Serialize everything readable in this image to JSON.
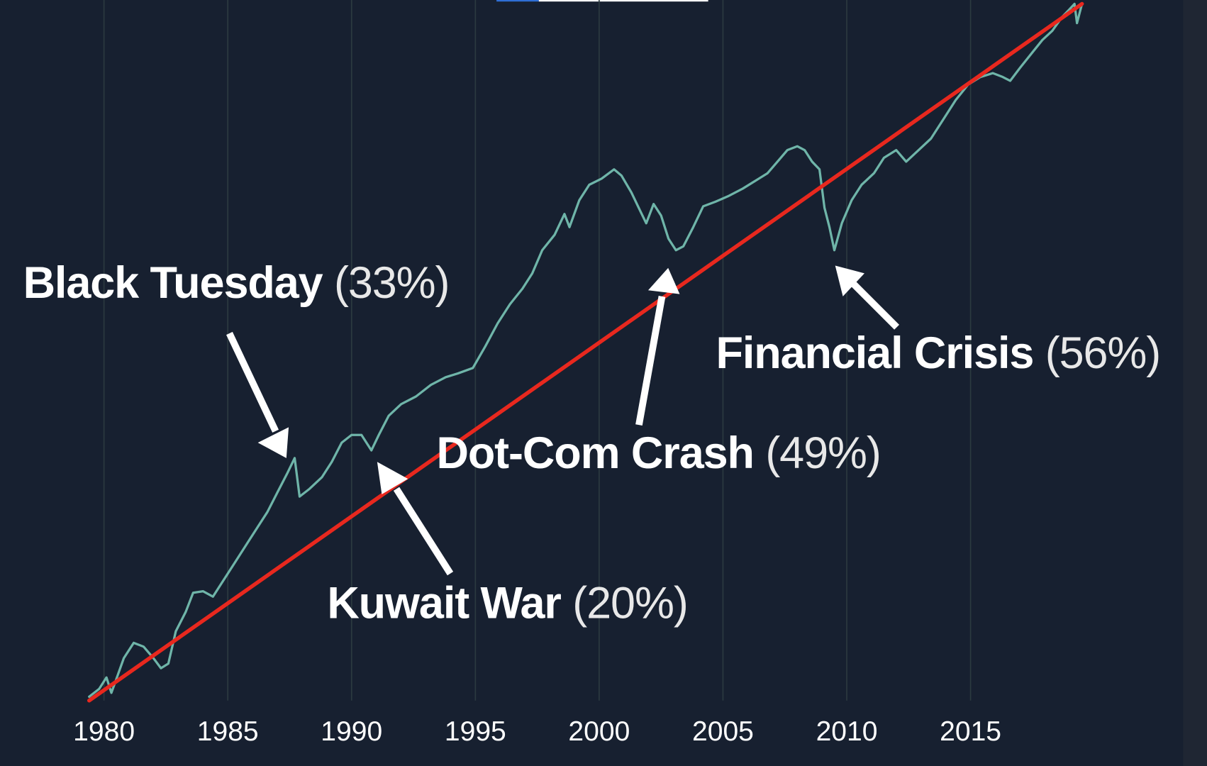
{
  "chart_data": {
    "type": "line",
    "background": "#172030",
    "grid": true,
    "xlim": [
      1975.8,
      2024.55
    ],
    "ylim": [
      0,
      910
    ],
    "xticks": [
      1980,
      1985,
      1990,
      1995,
      2000,
      2005,
      2010,
      2015
    ],
    "series": [
      {
        "color": "#6fb5a9",
        "x": [
          1979.4,
          1979.8,
          1980.1,
          1980.3,
          1980.8,
          1981.2,
          1981.6,
          1982.0,
          1982.3,
          1982.6,
          1982.9,
          1983.3,
          1983.6,
          1984.0,
          1984.4,
          1984.8,
          1985.3,
          1985.8,
          1986.2,
          1986.6,
          1987.0,
          1987.4,
          1987.7,
          1987.9,
          1988.3,
          1988.8,
          1989.2,
          1989.6,
          1990.0,
          1990.4,
          1990.8,
          1991.1,
          1991.5,
          1992.0,
          1992.6,
          1993.2,
          1993.8,
          1994.3,
          1994.9,
          1995.4,
          1995.9,
          1996.4,
          1996.9,
          1997.3,
          1997.7,
          1998.2,
          1998.6,
          1998.8,
          1999.2,
          1999.6,
          2000.1,
          2000.6,
          2000.9,
          2001.3,
          2001.6,
          2001.9,
          2002.2,
          2002.5,
          2002.8,
          2003.1,
          2003.4,
          2003.8,
          2004.2,
          2004.7,
          2005.2,
          2005.8,
          2006.3,
          2006.8,
          2007.2,
          2007.6,
          2008.0,
          2008.3,
          2008.6,
          2008.9,
          2009.1,
          2009.3,
          2009.5,
          2009.8,
          2010.2,
          2010.6,
          2011.1,
          2011.5,
          2012.0,
          2012.4,
          2012.9,
          2013.4,
          2013.9,
          2014.4,
          2014.9,
          2015.4,
          2015.9,
          2016.3,
          2016.6,
          2017.0,
          2017.5,
          2017.9,
          2018.3,
          2018.7,
          2019.0,
          2019.2,
          2019.3,
          2019.5
        ],
        "values": [
          5,
          15,
          30,
          10,
          55,
          75,
          70,
          55,
          42,
          48,
          90,
          115,
          140,
          142,
          135,
          155,
          180,
          205,
          225,
          245,
          270,
          295,
          315,
          265,
          275,
          290,
          310,
          335,
          345,
          345,
          325,
          345,
          370,
          385,
          395,
          410,
          420,
          425,
          432,
          460,
          490,
          515,
          535,
          555,
          585,
          605,
          632,
          615,
          650,
          670,
          678,
          690,
          682,
          660,
          640,
          620,
          645,
          630,
          600,
          585,
          590,
          615,
          642,
          648,
          655,
          665,
          675,
          685,
          700,
          715,
          720,
          715,
          700,
          690,
          640,
          615,
          585,
          620,
          650,
          670,
          685,
          705,
          715,
          700,
          715,
          730,
          755,
          780,
          800,
          810,
          815,
          810,
          805,
          822,
          842,
          858,
          870,
          888,
          898,
          905,
          880,
          905
        ]
      },
      {
        "color": "#e8281e",
        "x": [
          1979.4,
          2019.5
        ],
        "values": [
          0,
          905
        ]
      }
    ],
    "annotations": [
      {
        "label": "Black Tuesday",
        "value_label": "(33%)"
      },
      {
        "label": "Kuwait War",
        "value_label": "(20%)"
      },
      {
        "label": "Dot-Com Crash",
        "value_label": "(49%)"
      },
      {
        "label": "Financial Crisis",
        "value_label": "(56%)"
      }
    ]
  }
}
